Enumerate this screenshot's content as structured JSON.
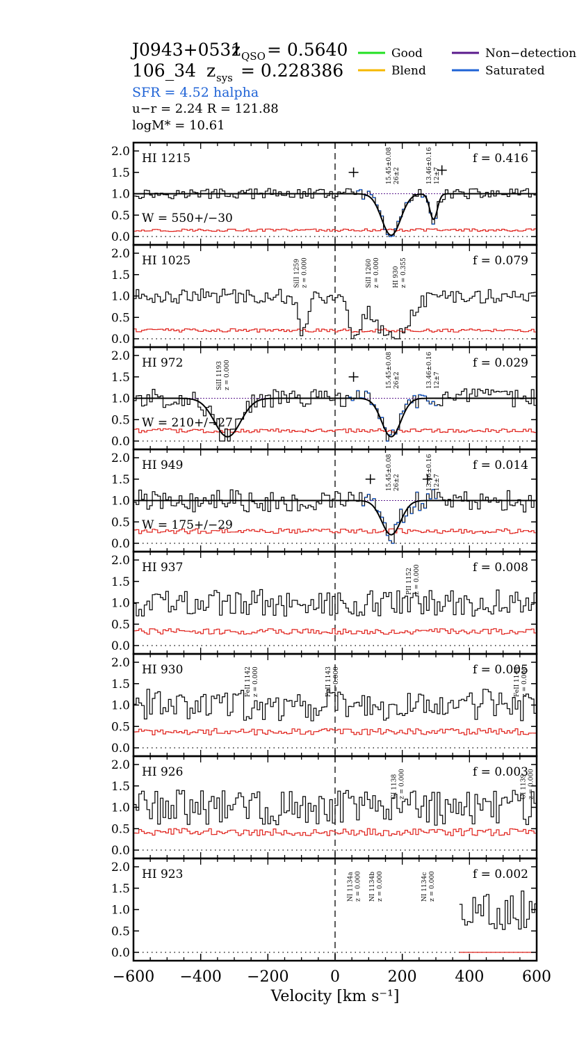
{
  "header": {
    "qso_name": "J0943+0531",
    "z_qso_label": "z",
    "z_qso_sub": "QSO",
    "z_qso_value": "= 0.5640",
    "galaxy_id": "106_34",
    "z_sys_label": "z",
    "z_sys_sub": "sys",
    "z_sys_value": "= 0.228386",
    "sfr_text": "SFR =   4.52  halpha",
    "ur_text": "u−r = 2.24   R = 121.88",
    "logm_text": "logM*  =  10.61"
  },
  "legend": {
    "items": [
      {
        "label": "Good",
        "color": "#22e022"
      },
      {
        "label": "Non−detection",
        "color": "#5a1a8c"
      },
      {
        "label": "Blend",
        "color": "#f5b800"
      },
      {
        "label": "Saturated",
        "color": "#1f63d6"
      }
    ]
  },
  "colors": {
    "flux": "#000000",
    "error": "#e0201a",
    "saturated": "#1f63d6",
    "nondetection": "#5a1a8c",
    "fit": "#000000"
  },
  "chart_data": {
    "type": "line",
    "xlabel": "Velocity [km s⁻¹]",
    "xlim": [
      -600,
      600
    ],
    "xticks": [
      -600,
      -400,
      -200,
      0,
      200,
      400,
      600
    ],
    "xtick_labels": [
      "−600",
      "−400",
      "−200",
      "0",
      "200",
      "400",
      "600"
    ],
    "ylim": [
      0,
      2
    ],
    "yticks": [
      0.0,
      0.5,
      1.0,
      1.5,
      2.0
    ],
    "ytick_labels": [
      "0.0",
      "0.5",
      "1.0",
      "1.5",
      "2.0"
    ],
    "panels": [
      {
        "line": "HI 1215",
        "f": "f = 0.416",
        "w": "W = 550+/−30",
        "sat": [
          [
            60,
            220
          ],
          [
            250,
            300
          ]
        ],
        "components": [
          {
            "v": 167,
            "b": 40,
            "depth": 0.97
          },
          {
            "v": 293,
            "b": 16,
            "depth": 0.6
          }
        ],
        "comp_labels": [
          {
            "v": 170,
            "text": "15.45±0.08",
            "text2": "26±2"
          },
          {
            "v": 290,
            "text": "13.46±0.16",
            "text2": "12±7"
          }
        ],
        "plus": [
          {
            "v": 55,
            "y": 1.5
          },
          {
            "v": 318,
            "y": 1.55
          }
        ],
        "ids": []
      },
      {
        "line": "HI 1025",
        "f": "f = 0.079",
        "w": "",
        "sat": [],
        "components": [
          {
            "v": -95,
            "b": 16,
            "depth": 0.9
          },
          {
            "v": 170,
            "b": 65,
            "depth": 1.0
          },
          {
            "v": 60,
            "b": 28,
            "depth": 0.9
          }
        ],
        "comp_labels": [],
        "plus": [],
        "ids": [
          {
            "v": -105,
            "text": "SiII 1259",
            "text2": "z = 0.000"
          },
          {
            "v": 110,
            "text": "SiII 1260",
            "text2": "z = 0.000"
          },
          {
            "v": 190,
            "text": "HI 930",
            "text2": "z = 0.355"
          }
        ]
      },
      {
        "line": "HI 972",
        "f": "f = 0.029",
        "w": "W = 210+/−27",
        "sat": [
          [
            40,
            300
          ]
        ],
        "components": [
          {
            "v": 167,
            "b": 40,
            "depth": 0.9
          },
          {
            "v": -320,
            "b": 55,
            "depth": 0.9
          }
        ],
        "comp_labels": [
          {
            "v": 170,
            "text": "15.45±0.08",
            "text2": "26±2"
          },
          {
            "v": 290,
            "text": "13.46±0.16",
            "text2": "12±7"
          }
        ],
        "plus": [
          {
            "v": 55,
            "y": 1.5
          }
        ],
        "ids": [
          {
            "v": -335,
            "text": "SiII 1193",
            "text2": "z = 0.000"
          }
        ]
      },
      {
        "line": "HI 949",
        "f": "f = 0.014",
        "w": "W = 175+/−29",
        "sat": [
          [
            80,
            300
          ]
        ],
        "components": [
          {
            "v": 167,
            "b": 40,
            "depth": 0.8
          }
        ],
        "comp_labels": [
          {
            "v": 170,
            "text": "15.45±0.08",
            "text2": "26±2"
          },
          {
            "v": 290,
            "text": "13.46±0.16",
            "text2": "12±7"
          }
        ],
        "plus": [
          {
            "v": 105,
            "y": 1.5
          },
          {
            "v": 275,
            "y": 1.5
          }
        ],
        "ids": []
      },
      {
        "line": "HI 937",
        "f": "f = 0.008",
        "w": "",
        "sat": [],
        "components": [],
        "comp_labels": [],
        "plus": [],
        "ids": [
          {
            "v": 230,
            "text": "PII 1152",
            "text2": "z = 0.000"
          }
        ]
      },
      {
        "line": "HI 930",
        "f": "f = 0.005",
        "w": "",
        "sat": [],
        "components": [],
        "comp_labels": [],
        "plus": [],
        "ids": [
          {
            "v": -250,
            "text": "FeII 1142",
            "text2": "z = 0.000"
          },
          {
            "v": -10,
            "text": "FeII 1143",
            "text2": "z = 0.000"
          },
          {
            "v": 550,
            "text": "FeII 1144",
            "text2": "z = 0.000"
          }
        ]
      },
      {
        "line": "HI 926",
        "f": "f = 0.003",
        "w": "",
        "sat": [],
        "components": [],
        "comp_labels": [],
        "plus": [],
        "ids": [
          {
            "v": 185,
            "text": "CI 1138",
            "text2": "z = 0.000"
          },
          {
            "v": 570,
            "text": "CI 1139",
            "text2": "z = 0.000"
          }
        ]
      },
      {
        "line": "HI 923",
        "f": "f = 0.002",
        "w": "",
        "sat": [],
        "components": [],
        "comp_labels": [],
        "plus": [],
        "partial_from": 370,
        "ids": [
          {
            "v": 55,
            "text": "NI 1134a",
            "text2": "z = 0.000"
          },
          {
            "v": 120,
            "text": "NI 1134b",
            "text2": "z = 0.000"
          },
          {
            "v": 275,
            "text": "NI 1134c",
            "text2": "z = 0.000"
          }
        ]
      }
    ]
  }
}
